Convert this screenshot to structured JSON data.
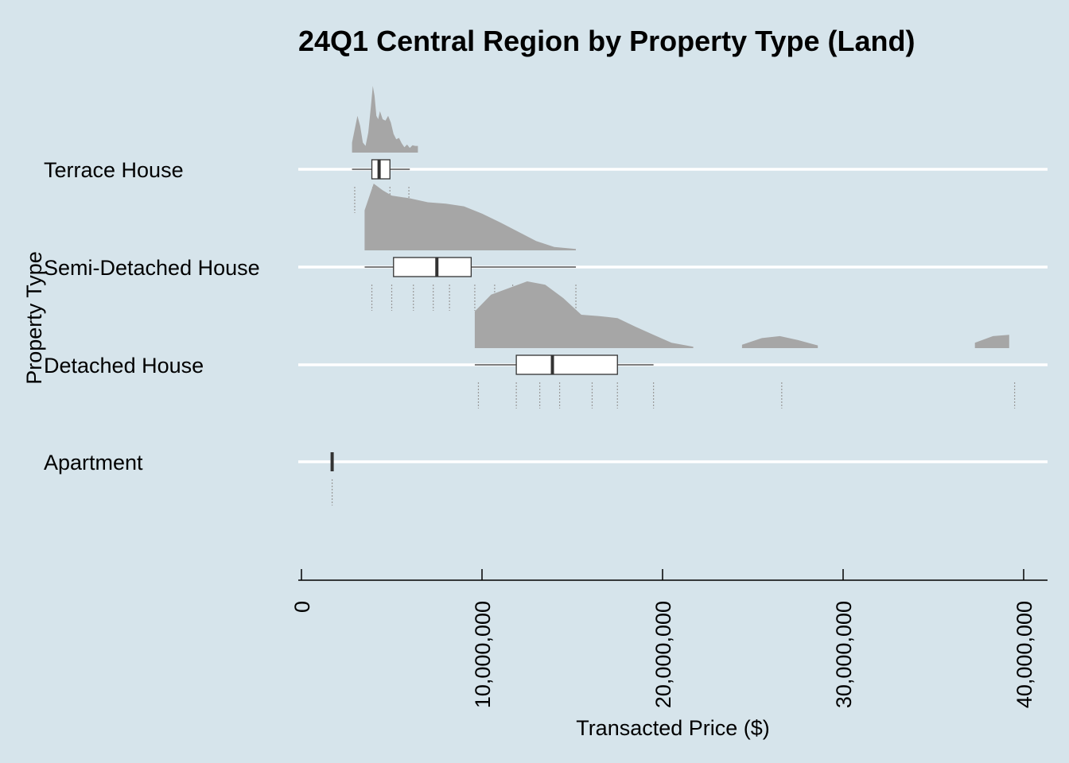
{
  "chart_data": {
    "type": "raincloud",
    "title": "24Q1 Central Region by Property Type (Land)",
    "xlabel": "Transacted Price ($)",
    "ylabel": "Property Type",
    "xlim": [
      0,
      41000000
    ],
    "xticks": [
      0,
      10000000,
      20000000,
      30000000,
      40000000
    ],
    "xtick_labels": [
      "0",
      "10,000,000",
      "20,000,000",
      "30,000,000",
      "40,000,000"
    ],
    "categories": [
      "Terrace House",
      "Semi-Detached House",
      "Detached House",
      "Apartment"
    ],
    "colors": {
      "background": "#d6e4eb",
      "cloud": "#a6a6a6",
      "box_fill": "#ffffff",
      "line": "#333333",
      "grid": "#ffffff"
    },
    "groups": [
      {
        "name": "Terrace House",
        "box": {
          "min": 2800000,
          "q1": 3900000,
          "median": 4300000,
          "q3": 4900000,
          "max": 6000000
        },
        "points": [
          2950000,
          3950000,
          4900000,
          5950000
        ],
        "density_x": [
          2800000,
          2950000,
          3100000,
          3250000,
          3400000,
          3550000,
          3700000,
          3850000,
          3950000,
          4050000,
          4150000,
          4250000,
          4350000,
          4500000,
          4650000,
          4800000,
          4950000,
          5100000,
          5250000,
          5400000,
          5550000,
          5700000,
          5850000,
          6000000,
          6150000,
          6300000,
          6450000
        ],
        "density_y": [
          0.15,
          0.35,
          0.55,
          0.4,
          0.15,
          0.1,
          0.3,
          0.7,
          1.0,
          0.85,
          0.55,
          0.5,
          0.62,
          0.5,
          0.48,
          0.55,
          0.45,
          0.28,
          0.2,
          0.22,
          0.14,
          0.08,
          0.12,
          0.07,
          0.11,
          0.1,
          0.1
        ]
      },
      {
        "name": "Semi-Detached House",
        "box": {
          "min": 3500000,
          "q1": 5100000,
          "median": 7500000,
          "q3": 9400000,
          "max": 15200000
        },
        "points": [
          3900000,
          5000000,
          6200000,
          7300000,
          8200000,
          9600000,
          10700000,
          11700000,
          13100000,
          15200000
        ],
        "density_x": [
          3500000,
          4000000,
          4500000,
          5000000,
          6000000,
          7000000,
          8000000,
          9000000,
          10000000,
          11000000,
          12000000,
          13000000,
          14000000,
          15200000
        ],
        "density_y": [
          0.6,
          1.0,
          0.9,
          0.82,
          0.78,
          0.72,
          0.7,
          0.66,
          0.55,
          0.42,
          0.28,
          0.14,
          0.05,
          0.02
        ]
      },
      {
        "name": "Detached House",
        "box": {
          "min": 9600000,
          "q1": 11900000,
          "median": 13900000,
          "q3": 17500000,
          "max": 19500000
        },
        "points": [
          9800000,
          11900000,
          13200000,
          14300000,
          16100000,
          17500000,
          19500000,
          26600000,
          39500000
        ],
        "density_x": [
          9600000,
          10500000,
          11500000,
          12500000,
          13500000,
          14500000,
          15500000,
          16500000,
          17500000,
          18500000,
          19500000,
          20500000,
          21700000,
          24000000,
          24400000,
          25500000,
          26500000,
          27500000,
          28600000,
          29000000,
          37000000,
          37300000,
          38300000,
          39200000,
          39400000
        ],
        "density_y": [
          0.55,
          0.8,
          0.9,
          1.0,
          0.95,
          0.75,
          0.5,
          0.48,
          0.45,
          0.32,
          0.2,
          0.08,
          0.02,
          0.0,
          0.05,
          0.15,
          0.18,
          0.12,
          0.04,
          0.0,
          0.0,
          0.08,
          0.18,
          0.2,
          0.0
        ]
      },
      {
        "name": "Apartment",
        "box": {
          "min": 1700000,
          "q1": 1700000,
          "median": 1700000,
          "q3": 1700000,
          "max": 1700000
        },
        "points": [
          1700000
        ],
        "density_x": [],
        "density_y": []
      }
    ]
  }
}
